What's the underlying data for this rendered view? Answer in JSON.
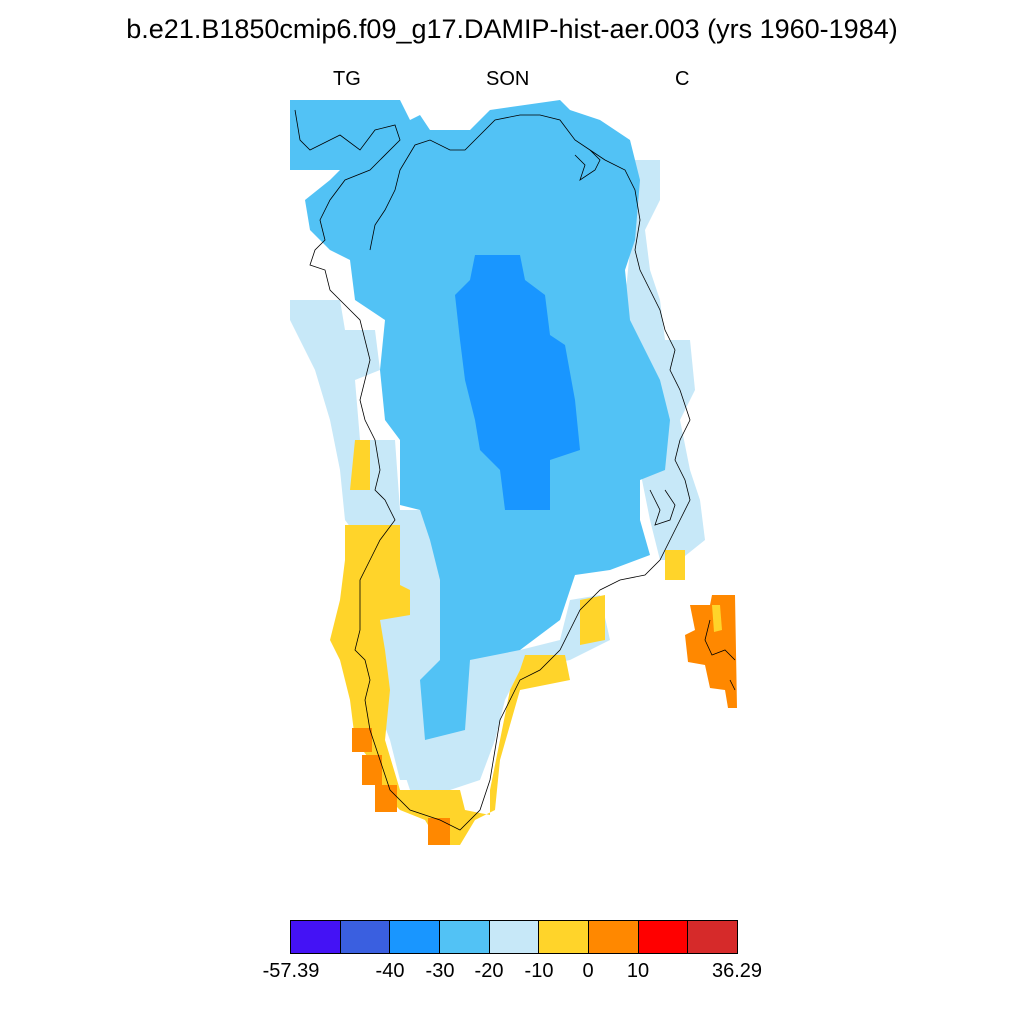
{
  "header": {
    "title": "b.e21.B1850cmip6.f09_g17.DAMIP-hist-aer.003 (yrs 1960-1984)",
    "left_label": "TG",
    "center_label": "SON",
    "right_label": "C"
  },
  "colorbar": {
    "colors": [
      "#4412f5",
      "#3a5fe0",
      "#1996ff",
      "#52c2f5",
      "#c7e8f8",
      "#ffd42a",
      "#ff8800",
      "#ff0000",
      "#d62a2a"
    ],
    "labels": [
      "-57.39",
      "-40",
      "-30",
      "-20",
      "-10",
      "0",
      "10",
      "36.29"
    ]
  },
  "map": {
    "region": "Greenland",
    "field_colors": {
      "strong_negative": "#1996ff",
      "negative": "#52c2f5",
      "weak_negative": "#c7e8f8",
      "weak_positive": "#ffd42a",
      "positive": "#ff8800"
    }
  }
}
